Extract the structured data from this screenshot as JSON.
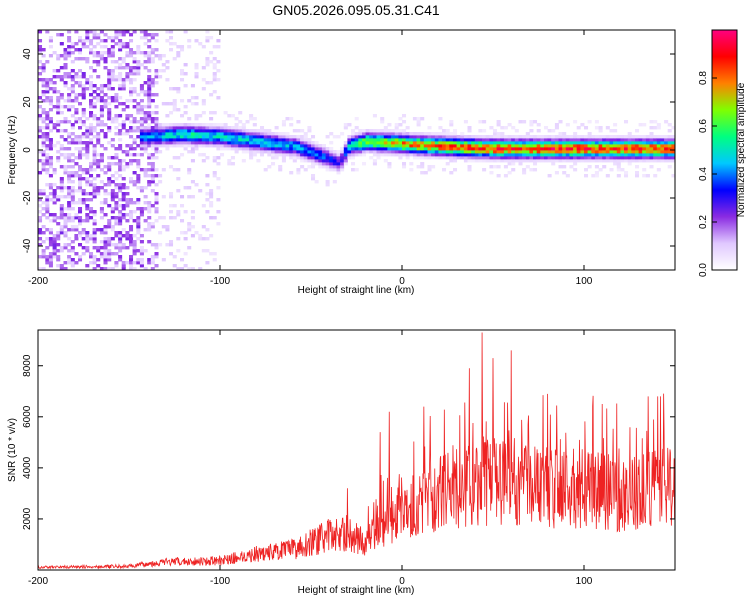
{
  "title": "GN05.2026.095.05.31.C41",
  "chart_data": [
    {
      "type": "heatmap",
      "xlabel": "Height of straight line (km)",
      "ylabel": "Frequency (Hz)",
      "xlim": [
        -200,
        150
      ],
      "ylim": [
        -50,
        50
      ],
      "xticks": [
        -200,
        -100,
        0,
        100
      ],
      "yticks": [
        -40,
        -20,
        0,
        20,
        40
      ],
      "colorbar": {
        "label": "Normalized spectral amplitude",
        "range": [
          0,
          1
        ],
        "ticks": [
          "0.0",
          "0.2",
          "0.4",
          "0.6",
          "0.8"
        ],
        "colors": [
          "#ffffff",
          "#e0c8ff",
          "#8a2be2",
          "#0000ff",
          "#00c8ff",
          "#00ff80",
          "#80ff00",
          "#ff8000",
          "#ff0000",
          "#ff0080"
        ]
      },
      "ridge": [
        {
          "x": -140,
          "f": 5,
          "a": 0.45
        },
        {
          "x": -120,
          "f": 6,
          "a": 0.55
        },
        {
          "x": -100,
          "f": 5,
          "a": 0.5
        },
        {
          "x": -80,
          "f": 3,
          "a": 0.5
        },
        {
          "x": -60,
          "f": 1,
          "a": 0.45
        },
        {
          "x": -45,
          "f": -3,
          "a": 0.4
        },
        {
          "x": -35,
          "f": -6,
          "a": 0.3
        },
        {
          "x": -30,
          "f": 1,
          "a": 0.5
        },
        {
          "x": -20,
          "f": 3,
          "a": 0.7
        },
        {
          "x": 0,
          "f": 2,
          "a": 0.8
        },
        {
          "x": 20,
          "f": 1,
          "a": 0.85
        },
        {
          "x": 50,
          "f": 0,
          "a": 0.9
        },
        {
          "x": 100,
          "f": 0,
          "a": 0.92
        },
        {
          "x": 148,
          "f": 0,
          "a": 0.9
        }
      ]
    },
    {
      "type": "line",
      "xlabel": "Height of straight line (km)",
      "ylabel": "SNR (10 * v/v)",
      "xlim": [
        -200,
        150
      ],
      "ylim": [
        0,
        9400
      ],
      "xticks": [
        -200,
        -100,
        0,
        100
      ],
      "yticks": [
        2000,
        4000,
        6000,
        8000
      ],
      "color": "#ee2222",
      "envelope": [
        {
          "x": -200,
          "y": 120
        },
        {
          "x": -150,
          "y": 160
        },
        {
          "x": -130,
          "y": 350
        },
        {
          "x": -100,
          "y": 400
        },
        {
          "x": -80,
          "y": 700
        },
        {
          "x": -60,
          "y": 900
        },
        {
          "x": -40,
          "y": 1500
        },
        {
          "x": -30,
          "y": 1600
        },
        {
          "x": -20,
          "y": 1200
        },
        {
          "x": -10,
          "y": 2000
        },
        {
          "x": 0,
          "y": 2600
        },
        {
          "x": 20,
          "y": 3300
        },
        {
          "x": 40,
          "y": 3800
        },
        {
          "x": 60,
          "y": 3900
        },
        {
          "x": 80,
          "y": 3600
        },
        {
          "x": 100,
          "y": 3500
        },
        {
          "x": 120,
          "y": 3300
        },
        {
          "x": 150,
          "y": 3600
        }
      ],
      "peaks": [
        {
          "x": -30,
          "y": 3200
        },
        {
          "x": -12,
          "y": 5400
        },
        {
          "x": -7,
          "y": 6200
        },
        {
          "x": 12,
          "y": 6400
        },
        {
          "x": 37,
          "y": 7900
        },
        {
          "x": 44,
          "y": 9300
        },
        {
          "x": 50,
          "y": 8300
        },
        {
          "x": 60,
          "y": 8600
        },
        {
          "x": 80,
          "y": 6900
        },
        {
          "x": 110,
          "y": 6500
        },
        {
          "x": 142,
          "y": 6800
        }
      ]
    }
  ]
}
